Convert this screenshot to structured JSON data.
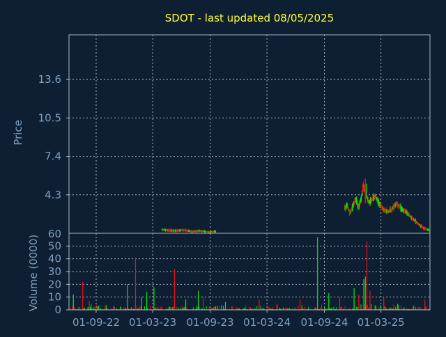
{
  "colors": {
    "background": "#0f1f33",
    "frame": "#a9b7c6",
    "grid": "#c8d0d8",
    "title": "#ffff33",
    "axis_text": "#7f9fbf",
    "up": "#00ee00",
    "down": "#ee1111"
  },
  "chart_data": [
    {
      "id": "price",
      "type": "candlestick",
      "title": "SDOT - last updated 08/05/2025",
      "ylabel": "Price",
      "xlabel": "",
      "ylim": [
        1.2,
        17.2
      ],
      "yticks": [
        4.3,
        7.4,
        10.5,
        13.6
      ],
      "xlim": [
        "2022-06-06",
        "2025-08-05"
      ],
      "xticks": [
        "2022-09-01",
        "2023-03-01",
        "2023-09-01",
        "2024-03-01",
        "2024-09-01",
        "2025-03-01"
      ],
      "grid": true,
      "segments": [
        {
          "from": "2023-04-01",
          "to": "2023-09-20",
          "path": [
            [
              0.0,
              1.5
            ],
            [
              0.2,
              1.4
            ],
            [
              0.4,
              1.45
            ],
            [
              0.55,
              1.35
            ],
            [
              0.7,
              1.4
            ],
            [
              0.85,
              1.3
            ],
            [
              1.0,
              1.35
            ]
          ]
        },
        {
          "from": "2024-11-05",
          "to": "2025-08-05",
          "path": [
            [
              0.0,
              3.2
            ],
            [
              0.03,
              3.5
            ],
            [
              0.06,
              2.8
            ],
            [
              0.1,
              3.4
            ],
            [
              0.13,
              4.0
            ],
            [
              0.16,
              3.3
            ],
            [
              0.19,
              3.9
            ],
            [
              0.22,
              5.1
            ],
            [
              0.25,
              4.3
            ],
            [
              0.28,
              3.7
            ],
            [
              0.32,
              3.9
            ],
            [
              0.36,
              4.2
            ],
            [
              0.4,
              3.6
            ],
            [
              0.45,
              3.2
            ],
            [
              0.5,
              2.9
            ],
            [
              0.55,
              3.1
            ],
            [
              0.6,
              3.6
            ],
            [
              0.64,
              3.4
            ],
            [
              0.68,
              3.1
            ],
            [
              0.72,
              2.9
            ],
            [
              0.78,
              2.5
            ],
            [
              0.84,
              2.1
            ],
            [
              0.9,
              1.75
            ],
            [
              0.95,
              1.55
            ],
            [
              1.0,
              1.4
            ]
          ]
        }
      ],
      "spike": {
        "date": "2025-01-10",
        "high": 5.6
      }
    },
    {
      "id": "volume",
      "type": "bar",
      "ylabel": "Volume (0000)",
      "xlabel": "",
      "ylim": [
        0,
        60
      ],
      "yticks": [
        0,
        10,
        20,
        30,
        40,
        50
      ],
      "top_label": "60",
      "xlim": [
        "2022-06-06",
        "2025-08-05"
      ],
      "xticks": [
        "2022-09-01",
        "2023-03-01",
        "2023-09-01",
        "2024-03-01",
        "2024-09-01",
        "2025-03-01"
      ],
      "x_tick_labels": [
        "01-09-22",
        "01-03-23",
        "01-09-23",
        "01-03-24",
        "01-09-24",
        "01-03-25"
      ],
      "grid": true,
      "baseline_max": 5,
      "spikes": [
        {
          "date": "2022-06-20",
          "value": 12,
          "dir": "up"
        },
        {
          "date": "2022-07-20",
          "value": 22,
          "dir": "down"
        },
        {
          "date": "2022-08-10",
          "value": 7,
          "dir": "down"
        },
        {
          "date": "2022-12-10",
          "value": 20,
          "dir": "up"
        },
        {
          "date": "2023-01-05",
          "value": 41,
          "dir": "down"
        },
        {
          "date": "2023-01-25",
          "value": 10,
          "dir": "up"
        },
        {
          "date": "2023-02-10",
          "value": 14,
          "dir": "up"
        },
        {
          "date": "2023-03-05",
          "value": 18,
          "dir": "up"
        },
        {
          "date": "2023-05-10",
          "value": 32,
          "dir": "down"
        },
        {
          "date": "2023-06-15",
          "value": 8,
          "dir": "up"
        },
        {
          "date": "2023-07-25",
          "value": 15,
          "dir": "up"
        },
        {
          "date": "2023-08-10",
          "value": 10,
          "dir": "down"
        },
        {
          "date": "2023-10-20",
          "value": 6,
          "dir": "up"
        },
        {
          "date": "2024-02-05",
          "value": 8,
          "dir": "down"
        },
        {
          "date": "2024-06-15",
          "value": 8,
          "dir": "down"
        },
        {
          "date": "2024-08-10",
          "value": 57,
          "dir": "up"
        },
        {
          "date": "2024-09-15",
          "value": 13,
          "dir": "up"
        },
        {
          "date": "2024-10-20",
          "value": 10,
          "dir": "down"
        },
        {
          "date": "2024-12-05",
          "value": 17,
          "dir": "up"
        },
        {
          "date": "2024-12-20",
          "value": 12,
          "dir": "down"
        },
        {
          "date": "2025-01-05",
          "value": 24,
          "dir": "up"
        },
        {
          "date": "2025-01-10",
          "value": 26,
          "dir": "up"
        },
        {
          "date": "2025-01-15",
          "value": 54,
          "dir": "down"
        },
        {
          "date": "2025-01-25",
          "value": 15,
          "dir": "down"
        },
        {
          "date": "2025-03-10",
          "value": 10,
          "dir": "down"
        },
        {
          "date": "2025-07-20",
          "value": 8,
          "dir": "down"
        }
      ]
    }
  ]
}
